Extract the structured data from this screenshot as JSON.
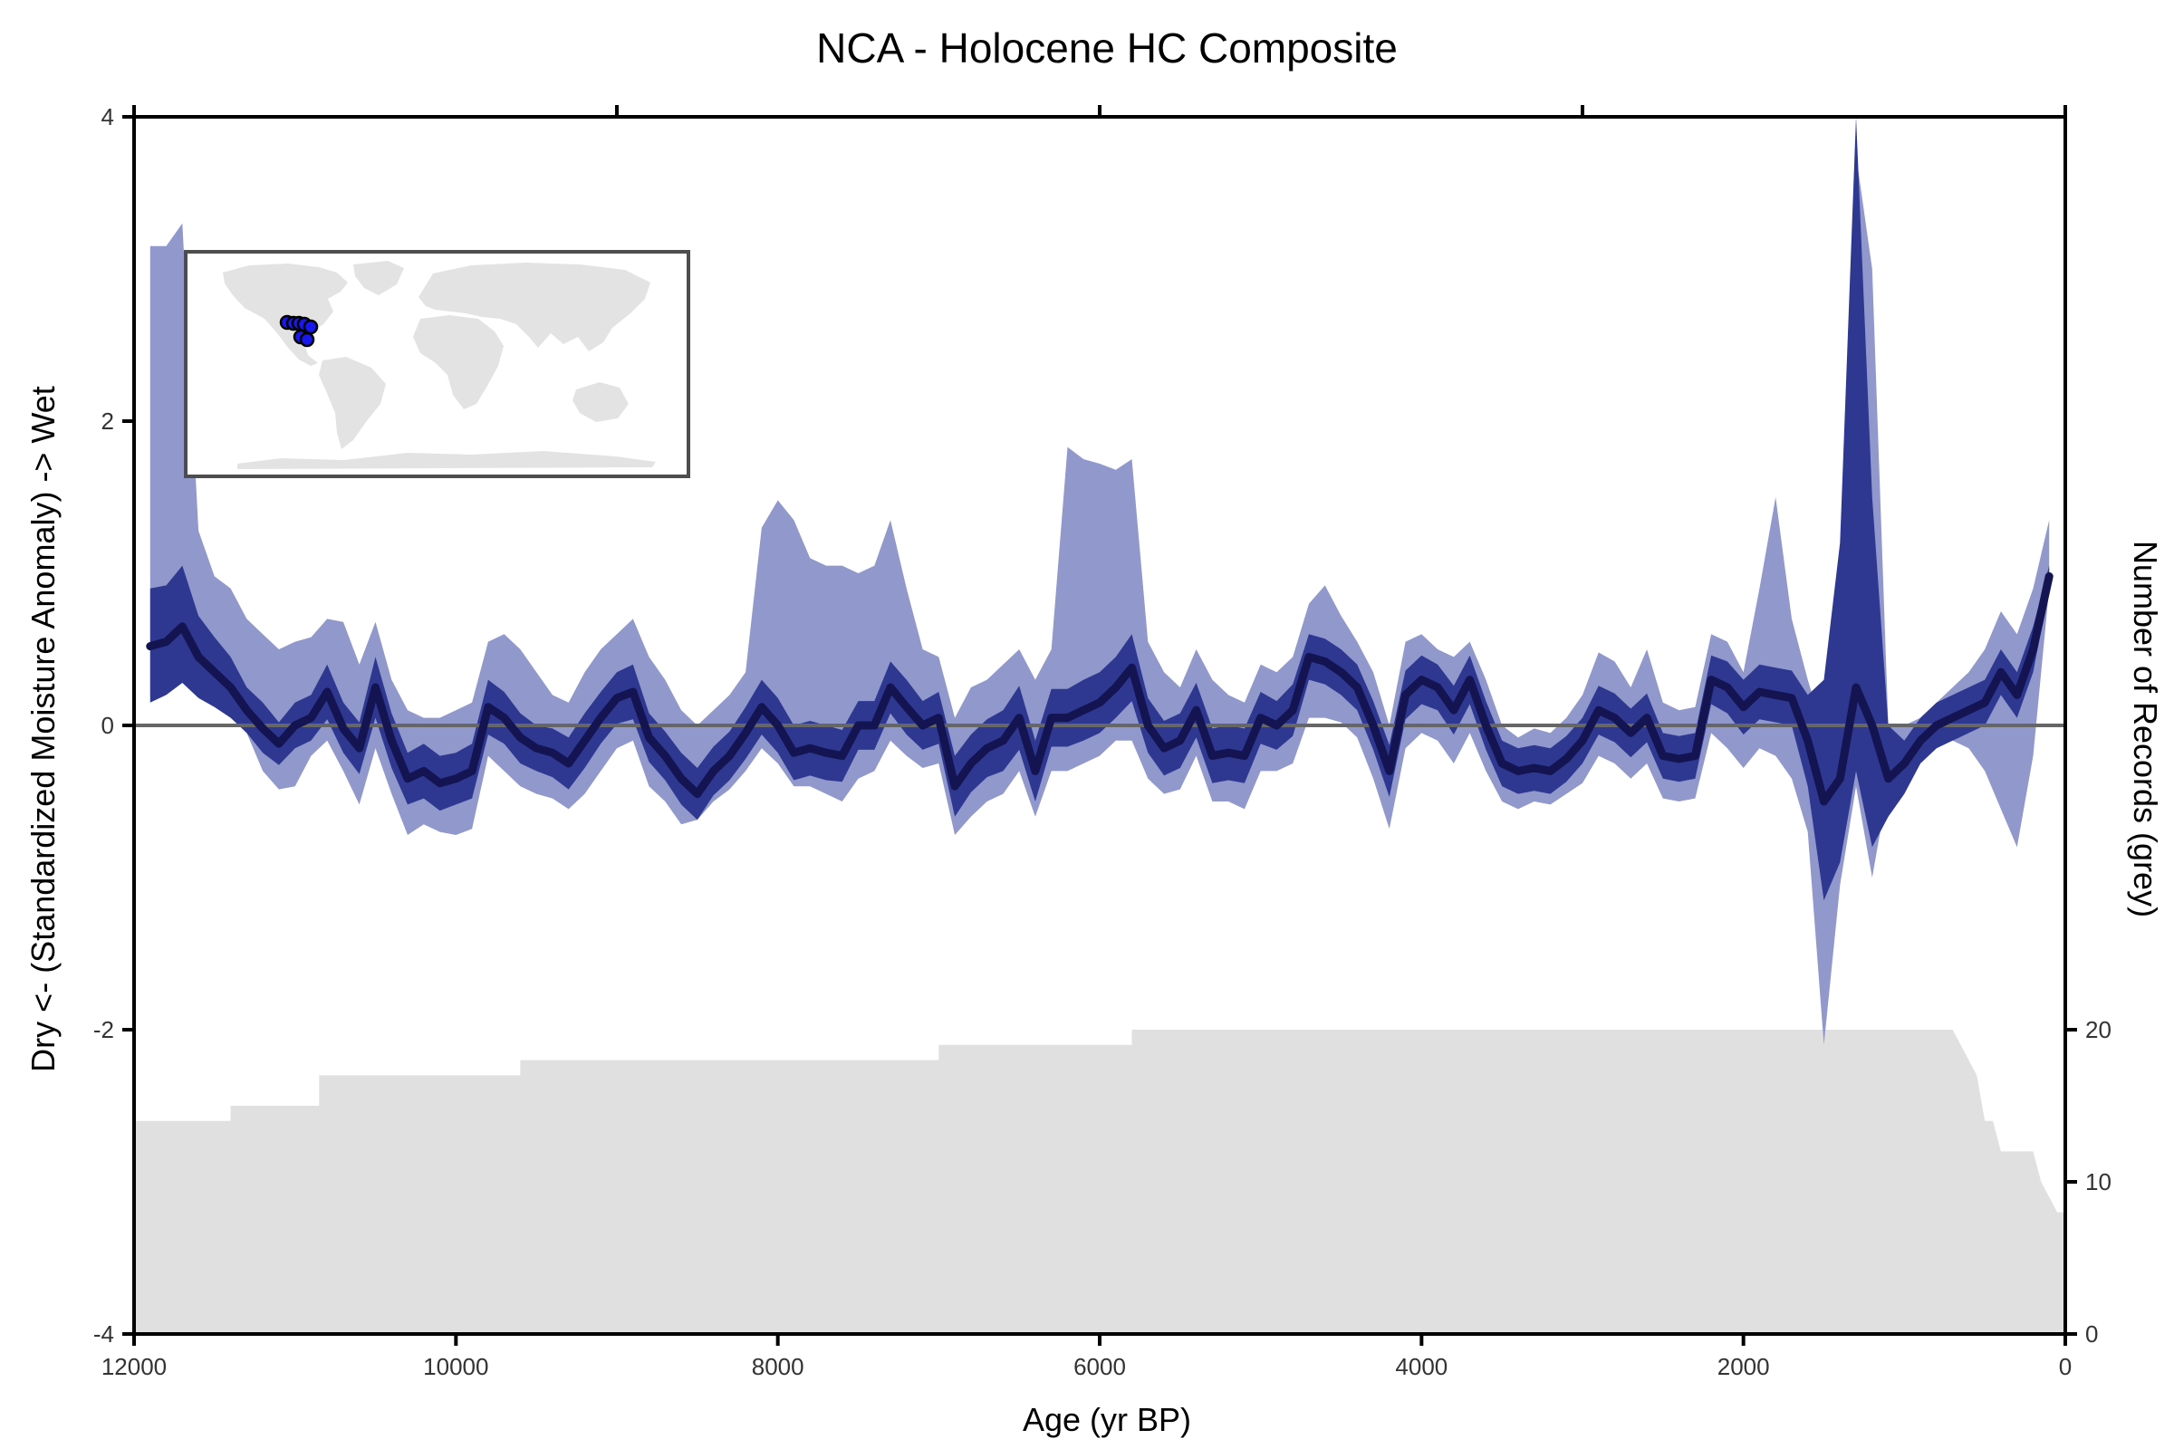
{
  "chart_data": {
    "type": "line",
    "title": "NCA - Holocene HC Composite",
    "xlabel": "Age (yr BP)",
    "ylabel": "Dry <- (Standardized Moisture Anomaly) -> Wet",
    "y2label": "Number of Records (grey)",
    "xlim": [
      12000,
      0
    ],
    "ylim": [
      -4,
      4
    ],
    "y2lim": [
      0,
      80
    ],
    "xticks": [
      12000,
      10000,
      8000,
      6000,
      4000,
      2000,
      0
    ],
    "yticks": [
      -4,
      -2,
      0,
      2,
      4
    ],
    "y2ticks": [
      0,
      10,
      20
    ],
    "zero_line": 0,
    "colors": {
      "median": "#141452",
      "inner_band": "#2e3891",
      "outer_band": "#9198cb",
      "records_area": "#e0e0e0",
      "zero_line": "#666666",
      "map_land": "#e3e3e3",
      "site_marker": "#1818ee"
    },
    "median": {
      "x": [
        11900,
        11800,
        11700,
        11600,
        11500,
        11400,
        11300,
        11200,
        11100,
        11000,
        10900,
        10800,
        10700,
        10600,
        10500,
        10400,
        10300,
        10200,
        10100,
        10000,
        9900,
        9800,
        9700,
        9600,
        9500,
        9400,
        9300,
        9200,
        9100,
        9000,
        8900,
        8800,
        8700,
        8600,
        8500,
        8400,
        8300,
        8200,
        8100,
        8000,
        7900,
        7800,
        7700,
        7600,
        7500,
        7400,
        7300,
        7200,
        7100,
        7000,
        6900,
        6800,
        6700,
        6600,
        6500,
        6400,
        6300,
        6200,
        6100,
        6000,
        5900,
        5800,
        5700,
        5600,
        5500,
        5400,
        5300,
        5200,
        5100,
        5000,
        4900,
        4800,
        4700,
        4600,
        4500,
        4400,
        4300,
        4200,
        4100,
        4000,
        3900,
        3800,
        3700,
        3600,
        3500,
        3400,
        3300,
        3200,
        3100,
        3000,
        2900,
        2800,
        2700,
        2600,
        2500,
        2400,
        2300,
        2200,
        2100,
        2000,
        1900,
        1800,
        1700,
        1600,
        1500,
        1400,
        1300,
        1200,
        1100,
        1000,
        900,
        800,
        700,
        600,
        500,
        400,
        300,
        200,
        100
      ],
      "y": [
        0.52,
        0.55,
        0.65,
        0.45,
        0.35,
        0.25,
        0.1,
        -0.02,
        -0.12,
        0.0,
        0.05,
        0.22,
        -0.02,
        -0.15,
        0.25,
        -0.1,
        -0.35,
        -0.3,
        -0.38,
        -0.35,
        -0.3,
        0.12,
        0.05,
        -0.08,
        -0.15,
        -0.18,
        -0.25,
        -0.1,
        0.05,
        0.18,
        0.22,
        -0.08,
        -0.2,
        -0.35,
        -0.45,
        -0.3,
        -0.2,
        -0.05,
        0.12,
        0.0,
        -0.18,
        -0.15,
        -0.18,
        -0.2,
        0.0,
        0.0,
        0.25,
        0.12,
        0.0,
        0.05,
        -0.4,
        -0.25,
        -0.15,
        -0.1,
        0.05,
        -0.3,
        0.05,
        0.05,
        0.1,
        0.15,
        0.25,
        0.38,
        0.0,
        -0.15,
        -0.1,
        0.1,
        -0.2,
        -0.18,
        -0.2,
        0.05,
        0.0,
        0.1,
        0.45,
        0.42,
        0.35,
        0.25,
        0.0,
        -0.3,
        0.2,
        0.3,
        0.25,
        0.1,
        0.3,
        0.0,
        -0.25,
        -0.3,
        -0.28,
        -0.3,
        -0.22,
        -0.1,
        0.1,
        0.05,
        -0.05,
        0.05,
        -0.2,
        -0.22,
        -0.2,
        0.3,
        0.25,
        0.12,
        0.22,
        0.2,
        0.18,
        -0.1,
        -0.5,
        -0.35,
        0.25,
        0.0,
        -0.35,
        -0.25,
        -0.1,
        0.0,
        0.05,
        0.1,
        0.15,
        0.35,
        0.2,
        0.5,
        0.98
      ]
    },
    "inner_band": {
      "upper": [
        0.9,
        0.92,
        1.05,
        0.72,
        0.58,
        0.45,
        0.25,
        0.15,
        0.02,
        0.15,
        0.2,
        0.4,
        0.15,
        0.02,
        0.45,
        0.08,
        -0.18,
        -0.12,
        -0.2,
        -0.18,
        -0.12,
        0.3,
        0.22,
        0.08,
        0.0,
        -0.02,
        -0.08,
        0.08,
        0.22,
        0.35,
        0.4,
        0.08,
        -0.04,
        -0.18,
        -0.28,
        -0.14,
        -0.04,
        0.12,
        0.3,
        0.18,
        0.0,
        0.03,
        0.0,
        -0.03,
        0.16,
        0.16,
        0.42,
        0.3,
        0.16,
        0.22,
        -0.2,
        -0.06,
        0.04,
        0.1,
        0.26,
        -0.1,
        0.24,
        0.24,
        0.3,
        0.35,
        0.45,
        0.6,
        0.18,
        0.03,
        0.08,
        0.28,
        -0.02,
        0.0,
        -0.02,
        0.22,
        0.16,
        0.27,
        0.6,
        0.57,
        0.5,
        0.4,
        0.16,
        -0.13,
        0.36,
        0.46,
        0.4,
        0.26,
        0.46,
        0.16,
        -0.1,
        -0.15,
        -0.13,
        -0.15,
        -0.07,
        0.05,
        0.26,
        0.21,
        0.11,
        0.21,
        -0.05,
        -0.07,
        -0.05,
        0.46,
        0.42,
        0.3,
        0.4,
        0.38,
        0.36,
        0.2,
        0.3,
        1.2,
        4.0,
        1.5,
        0.0,
        -0.1,
        0.05,
        0.15,
        0.2,
        0.25,
        0.3,
        0.5,
        0.35,
        0.65,
        1.05
      ],
      "lower": [
        0.15,
        0.2,
        0.28,
        0.18,
        0.12,
        0.05,
        -0.05,
        -0.18,
        -0.26,
        -0.15,
        -0.1,
        0.04,
        -0.18,
        -0.32,
        0.05,
        -0.28,
        -0.52,
        -0.48,
        -0.56,
        -0.52,
        -0.48,
        -0.06,
        -0.12,
        -0.25,
        -0.3,
        -0.34,
        -0.42,
        -0.28,
        -0.12,
        0.01,
        0.04,
        -0.24,
        -0.36,
        -0.52,
        -0.62,
        -0.46,
        -0.36,
        -0.22,
        -0.06,
        -0.18,
        -0.36,
        -0.33,
        -0.36,
        -0.37,
        -0.16,
        -0.16,
        0.08,
        -0.06,
        -0.16,
        -0.12,
        -0.6,
        -0.44,
        -0.34,
        -0.3,
        -0.16,
        -0.5,
        -0.14,
        -0.14,
        -0.1,
        -0.05,
        0.05,
        0.16,
        -0.18,
        -0.33,
        -0.28,
        -0.08,
        -0.38,
        -0.36,
        -0.38,
        -0.12,
        -0.16,
        -0.07,
        0.3,
        0.27,
        0.2,
        0.1,
        -0.16,
        -0.47,
        0.04,
        0.14,
        0.1,
        -0.06,
        0.14,
        -0.16,
        -0.4,
        -0.45,
        -0.43,
        -0.45,
        -0.37,
        -0.25,
        -0.06,
        -0.11,
        -0.21,
        -0.11,
        -0.35,
        -0.37,
        -0.35,
        0.14,
        0.08,
        -0.06,
        0.04,
        0.02,
        0.0,
        -0.4,
        -1.15,
        -0.9,
        -0.3,
        -0.8,
        -0.6,
        -0.45,
        -0.25,
        -0.15,
        -0.1,
        -0.05,
        0.0,
        0.2,
        0.05,
        0.35,
        0.9
      ]
    },
    "outer_band": {
      "upper": [
        3.15,
        3.15,
        3.3,
        1.28,
        0.98,
        0.9,
        0.7,
        0.6,
        0.5,
        0.55,
        0.58,
        0.7,
        0.68,
        0.4,
        0.68,
        0.3,
        0.1,
        0.05,
        0.05,
        0.1,
        0.15,
        0.55,
        0.6,
        0.5,
        0.35,
        0.2,
        0.15,
        0.35,
        0.5,
        0.6,
        0.7,
        0.45,
        0.3,
        0.1,
        0.0,
        0.1,
        0.2,
        0.35,
        1.3,
        1.48,
        1.35,
        1.1,
        1.05,
        1.05,
        1.0,
        1.05,
        1.35,
        0.9,
        0.5,
        0.45,
        0.05,
        0.25,
        0.3,
        0.4,
        0.5,
        0.3,
        0.5,
        1.83,
        1.75,
        1.72,
        1.68,
        1.75,
        0.55,
        0.35,
        0.25,
        0.5,
        0.3,
        0.2,
        0.15,
        0.4,
        0.35,
        0.45,
        0.8,
        0.92,
        0.72,
        0.55,
        0.35,
        0.0,
        0.55,
        0.6,
        0.5,
        0.45,
        0.55,
        0.3,
        0.0,
        -0.08,
        -0.02,
        -0.05,
        0.05,
        0.2,
        0.48,
        0.42,
        0.25,
        0.5,
        0.15,
        0.1,
        0.12,
        0.6,
        0.55,
        0.35,
        0.9,
        1.5,
        0.7,
        0.3,
        -0.05,
        1.0,
        3.75,
        3.0,
        0.0,
        0.0,
        0.05,
        0.15,
        0.25,
        0.35,
        0.5,
        0.75,
        0.6,
        0.9,
        1.35
      ],
      "lower": [
        0.2,
        0.22,
        0.3,
        0.2,
        0.15,
        0.08,
        -0.05,
        -0.3,
        -0.42,
        -0.4,
        -0.2,
        -0.1,
        -0.3,
        -0.52,
        -0.15,
        -0.45,
        -0.72,
        -0.65,
        -0.7,
        -0.72,
        -0.68,
        -0.2,
        -0.3,
        -0.4,
        -0.45,
        -0.48,
        -0.55,
        -0.45,
        -0.3,
        -0.15,
        -0.1,
        -0.4,
        -0.5,
        -0.65,
        -0.62,
        -0.5,
        -0.42,
        -0.3,
        -0.15,
        -0.25,
        -0.4,
        -0.4,
        -0.45,
        -0.5,
        -0.35,
        -0.3,
        -0.1,
        -0.2,
        -0.28,
        -0.25,
        -0.72,
        -0.6,
        -0.5,
        -0.45,
        -0.3,
        -0.6,
        -0.3,
        -0.3,
        -0.25,
        -0.2,
        -0.1,
        -0.1,
        -0.35,
        -0.45,
        -0.42,
        -0.2,
        -0.5,
        -0.5,
        -0.55,
        -0.3,
        -0.3,
        -0.25,
        0.05,
        0.05,
        0.02,
        -0.08,
        -0.35,
        -0.68,
        -0.15,
        -0.05,
        -0.1,
        -0.25,
        -0.05,
        -0.3,
        -0.5,
        -0.55,
        -0.5,
        -0.52,
        -0.45,
        -0.38,
        -0.2,
        -0.25,
        -0.35,
        -0.25,
        -0.48,
        -0.5,
        -0.48,
        -0.05,
        -0.15,
        -0.28,
        -0.15,
        -0.2,
        -0.35,
        -0.7,
        -2.1,
        -1.05,
        -0.4,
        -1.0,
        -0.4,
        -0.3,
        -0.2,
        -0.1,
        -0.1,
        -0.15,
        -0.3,
        -0.55,
        -0.8,
        -0.2,
        0.9
      ]
    },
    "records": {
      "x": [
        12000,
        11400,
        11400,
        10850,
        10850,
        9600,
        9600,
        7000,
        7000,
        5800,
        5800,
        700,
        650,
        600,
        550,
        500,
        450,
        400,
        300,
        200,
        150,
        100,
        50,
        0
      ],
      "y": [
        14,
        14,
        15,
        15,
        17,
        17,
        18,
        18,
        19,
        19,
        20,
        20,
        19,
        18,
        17,
        14,
        14,
        12,
        12,
        12,
        10,
        9,
        8,
        8
      ]
    }
  }
}
